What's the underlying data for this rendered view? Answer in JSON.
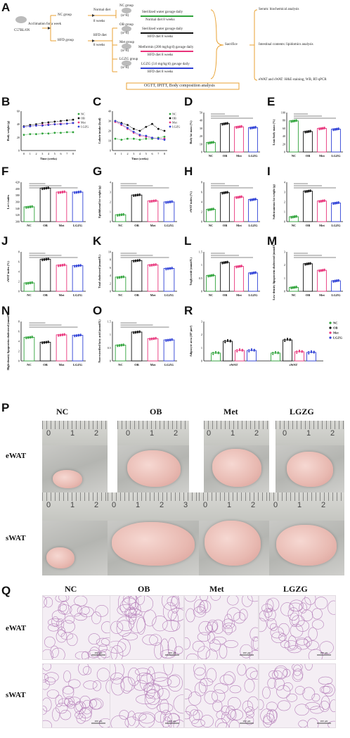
{
  "panels": {
    "A": "A",
    "B": "B",
    "C": "C",
    "D": "D",
    "E": "E",
    "F": "F",
    "G": "G",
    "H": "H",
    "I": "I",
    "J": "J",
    "K": "K",
    "L": "L",
    "M": "M",
    "N": "N",
    "O": "O",
    "R": "R",
    "P": "P",
    "Q": "Q"
  },
  "flow": {
    "mouse": "C57BL/6N",
    "acclim": "Acclimation for a week",
    "nc_group": "NC group",
    "hfd_group": "HFD group",
    "normal_diet": "Normal diet",
    "hfd_diet": "HFD diet",
    "weeks8a": "8 weeks",
    "weeks8b": "8 weeks",
    "g_nc": "NC group",
    "g_nc_n": "(n=8)",
    "g_ob": "OB group",
    "g_ob_n": "(n=8)",
    "g_met": "Met group",
    "g_met_n": "(n=8)",
    "g_lgzg": "LGZG group",
    "g_lgzg_n": "(n=8)",
    "t_nc1": "Sterilized water gavage daily",
    "t_nc2": "Normal diet 8 weeks",
    "t_ob1": "Sterilized water gavage daily",
    "t_ob2": "HFD diet 8 weeks",
    "t_met1": "Metformin (200 mg/kg/d) gavage daily",
    "t_met2": "HFD diet 8 weeks",
    "t_lgzg1": "LGZG (3.6 mg/kg/d) gavage daily",
    "t_lgzg2": "HFD diet 8 weeks",
    "sacrifice": "Sacrifice",
    "out1": "Serum: biochemical analysis",
    "out2": "Intestinal contents: lipidomics analysis",
    "out3": "eWAT and sWAT: H&E staining, WB, RT-qPCR",
    "ogtt": "OGTT, IPITT, Body composition analysis"
  },
  "colors": {
    "NC": "#2fa33a",
    "OB": "#111111",
    "Met": "#e8337a",
    "LGZG": "#2d3fd6"
  },
  "groups": [
    "NC",
    "OB",
    "Met",
    "LGZG"
  ],
  "legend": [
    "NC",
    "OB",
    "Met",
    "LGZG"
  ],
  "chart_data": [
    {
      "panel": "B",
      "type": "line",
      "ylabel": "Body weight (g)",
      "xlabel": "Time (weeks)",
      "x": [
        0,
        1,
        2,
        3,
        4,
        5,
        6,
        7,
        8
      ],
      "ylim": [
        0,
        60
      ],
      "series": [
        {
          "name": "NC",
          "values": [
            24,
            25,
            25,
            26,
            26,
            27,
            27,
            28,
            28
          ]
        },
        {
          "name": "OB",
          "values": [
            37,
            39,
            40,
            42,
            43,
            44,
            45,
            46,
            47
          ]
        },
        {
          "name": "Met",
          "values": [
            36,
            37,
            38,
            39,
            40,
            40,
            41,
            41,
            42
          ]
        },
        {
          "name": "LGZG",
          "values": [
            36,
            37,
            38,
            38,
            39,
            40,
            40,
            41,
            42
          ]
        }
      ]
    },
    {
      "panel": "C",
      "type": "line",
      "ylabel": "Calorie intake (kcal)",
      "xlabel": "Time (weeks)",
      "x": [
        0,
        1,
        2,
        3,
        4,
        5,
        6,
        7,
        8
      ],
      "ylim": [
        0,
        40
      ],
      "series": [
        {
          "name": "NC",
          "values": [
            12,
            11,
            12,
            12,
            11,
            12,
            12,
            13,
            14
          ]
        },
        {
          "name": "OB",
          "values": [
            30,
            28,
            26,
            22,
            20,
            24,
            27,
            22,
            20
          ]
        },
        {
          "name": "Met",
          "values": [
            29,
            26,
            22,
            18,
            15,
            14,
            13,
            12,
            12
          ]
        },
        {
          "name": "LGZG",
          "values": [
            30,
            27,
            23,
            19,
            16,
            15,
            13,
            12,
            11
          ]
        }
      ]
    },
    {
      "panel": "D",
      "type": "bar",
      "ylabel": "Body fat mass (%)",
      "ylim": [
        0,
        50
      ],
      "ticks": [
        0,
        10,
        20,
        30,
        40,
        50
      ],
      "categories": [
        "NC",
        "OB",
        "Met",
        "LGZG"
      ],
      "values": [
        12,
        36,
        32,
        31
      ]
    },
    {
      "panel": "E",
      "type": "bar",
      "ylabel": "Lean body mass (%)",
      "ylim": [
        0,
        100
      ],
      "ticks": [
        0,
        20,
        40,
        60,
        80,
        100
      ],
      "categories": [
        "NC",
        "OB",
        "Met",
        "LGZG"
      ],
      "values": [
        79,
        52,
        60,
        58
      ]
    },
    {
      "panel": "F",
      "type": "bar",
      "ylabel": "Lee's index",
      "ylim": [
        300,
        420
      ],
      "ticks": [
        300,
        320,
        340,
        360,
        380,
        400,
        420
      ],
      "categories": [
        "NC",
        "OB",
        "Met",
        "LGZG"
      ],
      "values": [
        345,
        402,
        390,
        390
      ]
    },
    {
      "panel": "G",
      "type": "bar",
      "ylabel": "Epididymal fat weight (g)",
      "ylim": [
        0,
        4
      ],
      "ticks": [
        0,
        1,
        2,
        3,
        4
      ],
      "categories": [
        "NC",
        "OB",
        "Met",
        "LGZG"
      ],
      "values": [
        0.7,
        2.7,
        2.1,
        2.0
      ]
    },
    {
      "panel": "H",
      "type": "bar",
      "ylabel": "eWAT index (%)",
      "ylim": [
        0,
        8
      ],
      "ticks": [
        0,
        2,
        4,
        6,
        8
      ],
      "categories": [
        "NC",
        "OB",
        "Met",
        "LGZG"
      ],
      "values": [
        2.5,
        5.9,
        5.0,
        4.5
      ]
    },
    {
      "panel": "I",
      "type": "bar",
      "ylabel": "Subcutaneous fat weight (g)",
      "ylim": [
        0,
        4
      ],
      "ticks": [
        0,
        1,
        2,
        3,
        4
      ],
      "categories": [
        "NC",
        "OB",
        "Met",
        "LGZG"
      ],
      "values": [
        0.5,
        3.1,
        2.1,
        1.9
      ]
    },
    {
      "panel": "J",
      "type": "bar",
      "ylabel": "sWAT index (%)",
      "ylim": [
        0,
        8
      ],
      "ticks": [
        0,
        2,
        4,
        6,
        8
      ],
      "categories": [
        "NC",
        "OB",
        "Met",
        "LGZG"
      ],
      "values": [
        1.7,
        6.5,
        5.3,
        5.2
      ]
    },
    {
      "panel": "K",
      "type": "bar",
      "ylabel": "Total cholesterol (mmol/L)",
      "ylim": [
        0,
        10
      ],
      "ticks": [
        0,
        2,
        4,
        6,
        8,
        10
      ],
      "categories": [
        "NC",
        "OB",
        "Met",
        "LGZG"
      ],
      "values": [
        3.6,
        7.8,
        6.7,
        5.8
      ]
    },
    {
      "panel": "L",
      "type": "bar",
      "ylabel": "Triglyceride (mmol/L)",
      "ylim": [
        0,
        1.5
      ],
      "ticks": [
        0,
        0.5,
        1.0,
        1.5
      ],
      "categories": [
        "NC",
        "OB",
        "Met",
        "LGZG"
      ],
      "values": [
        0.6,
        1.1,
        0.95,
        0.7
      ]
    },
    {
      "panel": "M",
      "type": "bar",
      "ylabel": "Low-density lipoprotein cholesterol (mmol/L)",
      "ylim": [
        0,
        3
      ],
      "ticks": [
        0,
        1,
        2,
        3
      ],
      "categories": [
        "NC",
        "OB",
        "Met",
        "LGZG"
      ],
      "values": [
        0.3,
        2.1,
        1.6,
        0.8
      ]
    },
    {
      "panel": "N",
      "type": "bar",
      "ylabel": "High-density lipoprotein cholesterol (mmol/L)",
      "ylim": [
        0,
        8
      ],
      "ticks": [
        0,
        2,
        4,
        6,
        8
      ],
      "categories": [
        "NC",
        "OB",
        "Met",
        "LGZG"
      ],
      "values": [
        4.8,
        3.8,
        5.3,
        5.2
      ]
    },
    {
      "panel": "O",
      "type": "bar",
      "ylabel": "Non-esterified fatty acid (mmol/L)",
      "ylim": [
        0,
        1.5
      ],
      "ticks": [
        0,
        0.5,
        1.0,
        1.5
      ],
      "categories": [
        "NC",
        "OB",
        "Met",
        "LGZG"
      ],
      "values": [
        0.6,
        1.1,
        0.85,
        0.8
      ]
    },
    {
      "panel": "R",
      "type": "bar",
      "ylabel": "Adipocyte area (10³ μm²)",
      "ylim": [
        0,
        3
      ],
      "ticks": [
        0,
        1,
        2,
        3
      ],
      "categories": [
        "eWAT",
        "sWAT"
      ],
      "series": [
        {
          "name": "NC",
          "values": [
            0.6,
            0.6
          ]
        },
        {
          "name": "OB",
          "values": [
            1.5,
            1.6
          ]
        },
        {
          "name": "Met",
          "values": [
            0.8,
            0.7
          ]
        },
        {
          "name": "LGZG",
          "values": [
            0.8,
            0.65
          ]
        }
      ]
    }
  ],
  "photo": {
    "cols": [
      "NC",
      "OB",
      "Met",
      "LGZG"
    ],
    "rows": [
      "eWAT",
      "sWAT"
    ],
    "r1": [
      "0",
      "1",
      "2"
    ],
    "r2": [
      "0",
      "1",
      "2",
      "3"
    ]
  },
  "histo": {
    "cols": [
      "NC",
      "OB",
      "Met",
      "LGZG"
    ],
    "rows": [
      "eWAT",
      "sWAT"
    ],
    "scale": "200 μm"
  }
}
